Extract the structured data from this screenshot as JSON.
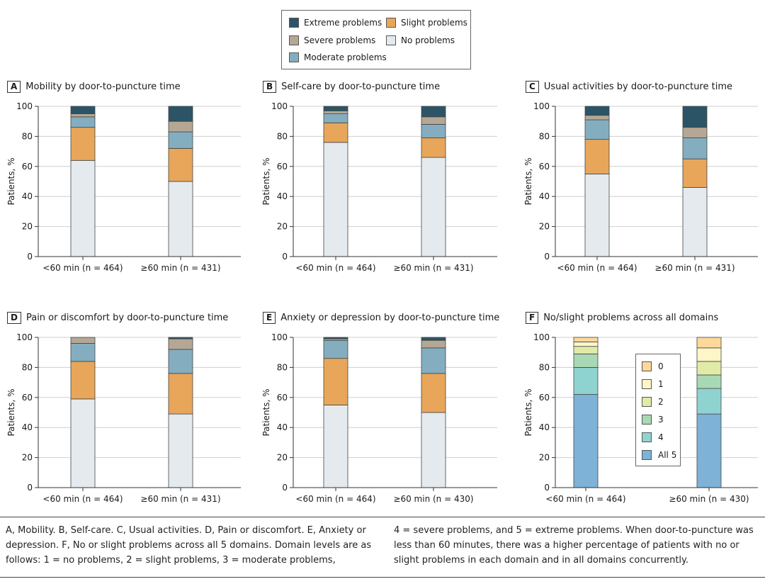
{
  "legend": {
    "items": [
      {
        "label": "Extreme problems",
        "color": "#2b5566"
      },
      {
        "label": "Slight problems",
        "color": "#e8a65a"
      },
      {
        "label": "Severe problems",
        "color": "#b6a795"
      },
      {
        "label": "No problems",
        "color": "#e4eaee"
      },
      {
        "label": "Moderate problems",
        "color": "#84aec0"
      }
    ]
  },
  "axis_label": "Patients, %",
  "chart_data": [
    {
      "type": "bar",
      "stacked": true,
      "letter": "A",
      "title": "Mobility by door-to-puncture time",
      "ylabel": "Patients, %",
      "ylim": [
        0,
        100
      ],
      "yticks": [
        0,
        20,
        40,
        60,
        80,
        100
      ],
      "categories": [
        "<60 min (n = 464)",
        "≥60 min (n = 431)"
      ],
      "series": [
        {
          "name": "No problems",
          "values": [
            64,
            50
          ]
        },
        {
          "name": "Slight problems",
          "values": [
            22,
            22
          ]
        },
        {
          "name": "Moderate problems",
          "values": [
            7,
            11
          ]
        },
        {
          "name": "Severe problems",
          "values": [
            2,
            7
          ]
        },
        {
          "name": "Extreme problems",
          "values": [
            5,
            10
          ]
        }
      ]
    },
    {
      "type": "bar",
      "stacked": true,
      "letter": "B",
      "title": "Self-care by door-to-puncture time",
      "ylabel": "Patients, %",
      "ylim": [
        0,
        100
      ],
      "yticks": [
        0,
        20,
        40,
        60,
        80,
        100
      ],
      "categories": [
        "<60 min (n = 464)",
        "≥60 min (n = 431)"
      ],
      "series": [
        {
          "name": "No problems",
          "values": [
            76,
            66
          ]
        },
        {
          "name": "Slight problems",
          "values": [
            13,
            13
          ]
        },
        {
          "name": "Moderate problems",
          "values": [
            6,
            9
          ]
        },
        {
          "name": "Severe problems",
          "values": [
            2,
            5
          ]
        },
        {
          "name": "Extreme problems",
          "values": [
            3,
            7
          ]
        }
      ]
    },
    {
      "type": "bar",
      "stacked": true,
      "letter": "C",
      "title": "Usual activities by door-to-puncture time",
      "ylabel": "Patients, %",
      "ylim": [
        0,
        100
      ],
      "yticks": [
        0,
        20,
        40,
        60,
        80,
        100
      ],
      "categories": [
        "<60 min (n = 464)",
        "≥60 min (n = 431)"
      ],
      "series": [
        {
          "name": "No problems",
          "values": [
            55,
            46
          ]
        },
        {
          "name": "Slight problems",
          "values": [
            23,
            19
          ]
        },
        {
          "name": "Moderate problems",
          "values": [
            13,
            14
          ]
        },
        {
          "name": "Severe problems",
          "values": [
            3,
            7
          ]
        },
        {
          "name": "Extreme problems",
          "values": [
            6,
            14
          ]
        }
      ]
    },
    {
      "type": "bar",
      "stacked": true,
      "letter": "D",
      "title": "Pain or discomfort by door-to-puncture time",
      "ylabel": "Patients, %",
      "ylim": [
        0,
        100
      ],
      "yticks": [
        0,
        20,
        40,
        60,
        80,
        100
      ],
      "categories": [
        "<60 min (n = 464)",
        "≥60 min (n = 431)"
      ],
      "series": [
        {
          "name": "No problems",
          "values": [
            59,
            49
          ]
        },
        {
          "name": "Slight problems",
          "values": [
            25,
            27
          ]
        },
        {
          "name": "Moderate problems",
          "values": [
            12,
            16
          ]
        },
        {
          "name": "Severe problems",
          "values": [
            4,
            7
          ]
        },
        {
          "name": "Extreme problems",
          "values": [
            0,
            1
          ]
        }
      ]
    },
    {
      "type": "bar",
      "stacked": true,
      "letter": "E",
      "title": "Anxiety or depression by door-to-puncture time",
      "ylabel": "Patients, %",
      "ylim": [
        0,
        100
      ],
      "yticks": [
        0,
        20,
        40,
        60,
        80,
        100
      ],
      "categories": [
        "<60 min (n = 464)",
        "≥60 min (n = 430)"
      ],
      "series": [
        {
          "name": "No problems",
          "values": [
            55,
            50
          ]
        },
        {
          "name": "Slight problems",
          "values": [
            31,
            26
          ]
        },
        {
          "name": "Moderate problems",
          "values": [
            12,
            17
          ]
        },
        {
          "name": "Severe problems",
          "values": [
            1,
            5
          ]
        },
        {
          "name": "Extreme problems",
          "values": [
            1,
            2
          ]
        }
      ]
    },
    {
      "type": "bar",
      "stacked": true,
      "letter": "F",
      "title": "No/slight problems across all domains",
      "ylabel": "Patients, %",
      "ylim": [
        0,
        100
      ],
      "yticks": [
        0,
        20,
        40,
        60,
        80,
        100
      ],
      "categories": [
        "<60 min (n = 464)",
        "≥60 min (n = 430)"
      ],
      "series": [
        {
          "name": "All 5",
          "values": [
            62,
            49
          ],
          "color": "#7eb2d6"
        },
        {
          "name": "4",
          "values": [
            18,
            17
          ],
          "color": "#8fd3d1"
        },
        {
          "name": "3",
          "values": [
            9,
            9
          ],
          "color": "#a9d8b4"
        },
        {
          "name": "2",
          "values": [
            5,
            9
          ],
          "color": "#e0eba8"
        },
        {
          "name": "1",
          "values": [
            3,
            9
          ],
          "color": "#fdf6c7"
        },
        {
          "name": "0",
          "values": [
            3,
            7
          ],
          "color": "#fcd89a"
        }
      ]
    }
  ],
  "caption": {
    "left": "A, Mobility. B, Self-care. C, Usual activities. D, Pain or discomfort. E, Anxiety or depression. F, No or slight problems across all 5 domains. Domain levels are as follows: 1 = no problems, 2 = slight problems, 3 = moderate problems,",
    "right": "4 = severe problems, and 5 = extreme problems. When door-to-puncture was less than 60 minutes, there was a higher percentage of patients with no or slight problems in each domain and in all domains concurrently."
  }
}
